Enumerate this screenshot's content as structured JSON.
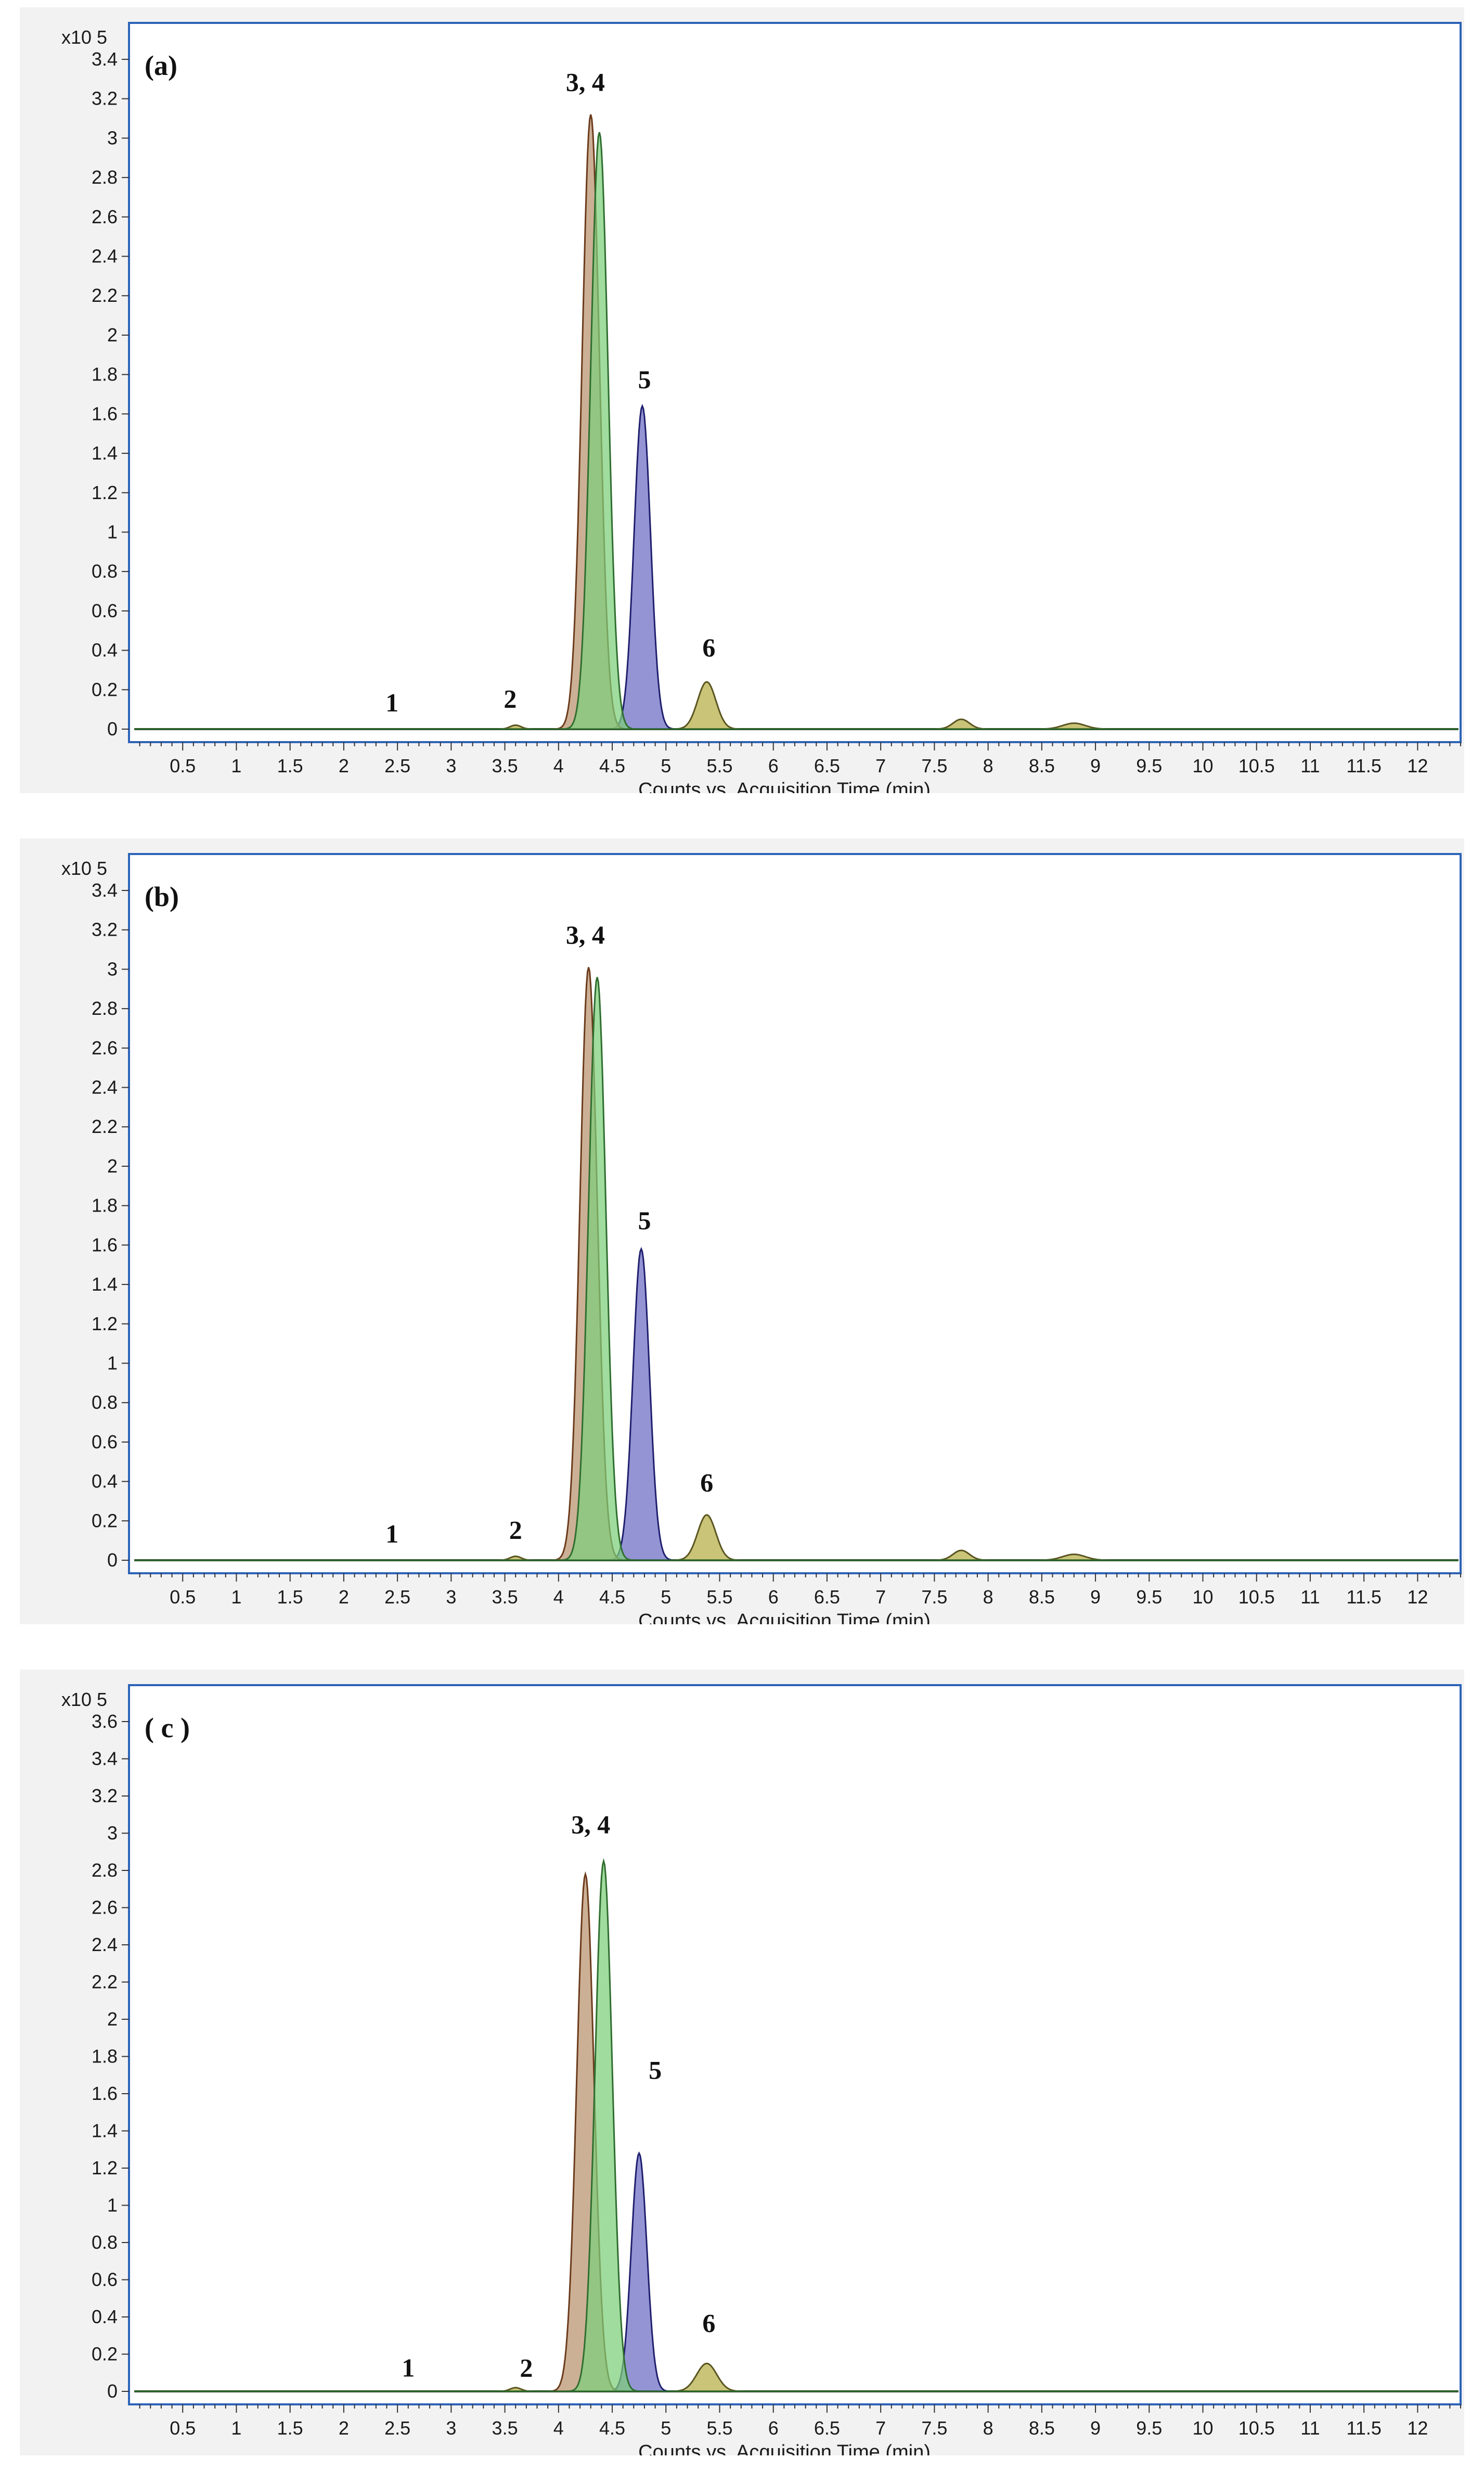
{
  "chart_data": [
    {
      "type": "area",
      "panel_label": "(a)",
      "xlabel": "Counts vs. Acquisition Time (min)",
      "y_exponent": "x10 5",
      "xlim": [
        0,
        12.4
      ],
      "ylim": [
        0,
        3.5
      ],
      "x_ticks": [
        "0.5",
        "1",
        "1.5",
        "2",
        "2.5",
        "3",
        "3.5",
        "4",
        "4.5",
        "5",
        "5.5",
        "6",
        "6.5",
        "7",
        "7.5",
        "8",
        "8.5",
        "9",
        "9.5",
        "10",
        "10.5",
        "11",
        "11.5",
        "12"
      ],
      "y_ticks": [
        "0",
        "0.2",
        "0.4",
        "0.6",
        "0.8",
        "1",
        "1.2",
        "1.4",
        "1.6",
        "1.8",
        "2",
        "2.2",
        "2.4",
        "2.6",
        "2.8",
        "3",
        "3.2",
        "3.4"
      ],
      "peak_labels": [
        {
          "text": "1",
          "x": 2.45,
          "y": 0.09
        },
        {
          "text": "2",
          "x": 3.55,
          "y": 0.11
        },
        {
          "text": "3, 4",
          "x": 4.25,
          "y": 3.24
        },
        {
          "text": "5",
          "x": 4.8,
          "y": 1.73
        },
        {
          "text": "6",
          "x": 5.4,
          "y": 0.37
        }
      ],
      "series": [
        {
          "color": "#6b6bc4",
          "line": "#1f1f6e",
          "peaks": [
            {
              "c": 4.78,
              "h": 1.64,
              "w": 0.18
            }
          ]
        },
        {
          "color": "#b5ad45",
          "line": "#5a5520",
          "peaks": [
            {
              "c": 5.38,
              "h": 0.24,
              "w": 0.2
            },
            {
              "c": 7.75,
              "h": 0.05,
              "w": 0.18
            },
            {
              "c": 8.8,
              "h": 0.03,
              "w": 0.25
            },
            {
              "c": 3.6,
              "h": 0.02,
              "w": 0.12
            }
          ]
        },
        {
          "color": "#b9926e",
          "line": "#6b3b1b",
          "peaks": [
            {
              "c": 4.3,
              "h": 3.12,
              "w": 0.19
            }
          ]
        },
        {
          "color": "#7dce7a",
          "line": "#2f6e2f",
          "peaks": [
            {
              "c": 4.38,
              "h": 3.03,
              "w": 0.19
            }
          ]
        }
      ]
    },
    {
      "type": "area",
      "panel_label": "(b)",
      "xlabel": "Counts vs. Acquisition Time (min)",
      "y_exponent": "x10 5",
      "xlim": [
        0,
        12.4
      ],
      "ylim": [
        0,
        3.5
      ],
      "x_ticks": [
        "0.5",
        "1",
        "1.5",
        "2",
        "2.5",
        "3",
        "3.5",
        "4",
        "4.5",
        "5",
        "5.5",
        "6",
        "6.5",
        "7",
        "7.5",
        "8",
        "8.5",
        "9",
        "9.5",
        "10",
        "10.5",
        "11",
        "11.5",
        "12"
      ],
      "y_ticks": [
        "0",
        "0.2",
        "0.4",
        "0.6",
        "0.8",
        "1",
        "1.2",
        "1.4",
        "1.6",
        "1.8",
        "2",
        "2.2",
        "2.4",
        "2.6",
        "2.8",
        "3",
        "3.2",
        "3.4"
      ],
      "peak_labels": [
        {
          "text": "1",
          "x": 2.45,
          "y": 0.09
        },
        {
          "text": "2",
          "x": 3.6,
          "y": 0.11
        },
        {
          "text": "3, 4",
          "x": 4.25,
          "y": 3.13
        },
        {
          "text": "5",
          "x": 4.8,
          "y": 1.68
        },
        {
          "text": "6",
          "x": 5.38,
          "y": 0.35
        }
      ],
      "series": [
        {
          "color": "#6b6bc4",
          "line": "#1f1f6e",
          "peaks": [
            {
              "c": 4.77,
              "h": 1.58,
              "w": 0.18
            }
          ]
        },
        {
          "color": "#b5ad45",
          "line": "#5a5520",
          "peaks": [
            {
              "c": 5.38,
              "h": 0.23,
              "w": 0.2
            },
            {
              "c": 7.75,
              "h": 0.05,
              "w": 0.18
            },
            {
              "c": 8.8,
              "h": 0.03,
              "w": 0.25
            },
            {
              "c": 3.6,
              "h": 0.02,
              "w": 0.12
            }
          ]
        },
        {
          "color": "#b9926e",
          "line": "#6b3b1b",
          "peaks": [
            {
              "c": 4.28,
              "h": 3.01,
              "w": 0.19
            }
          ]
        },
        {
          "color": "#7dce7a",
          "line": "#2f6e2f",
          "peaks": [
            {
              "c": 4.36,
              "h": 2.96,
              "w": 0.19
            }
          ]
        }
      ]
    },
    {
      "type": "area",
      "panel_label": "( c )",
      "xlabel": "Counts vs. Acquisition Time (min)",
      "y_exponent": "x10 5",
      "xlim": [
        0,
        12.4
      ],
      "ylim": [
        0,
        3.7
      ],
      "x_ticks": [
        "0.5",
        "1",
        "1.5",
        "2",
        "2.5",
        "3",
        "3.5",
        "4",
        "4.5",
        "5",
        "5.5",
        "6",
        "6.5",
        "7",
        "7.5",
        "8",
        "8.5",
        "9",
        "9.5",
        "10",
        "10.5",
        "11",
        "11.5",
        "12"
      ],
      "y_ticks": [
        "0",
        "0.2",
        "0.4",
        "0.6",
        "0.8",
        "1",
        "1.2",
        "1.4",
        "1.6",
        "1.8",
        "2",
        "2.2",
        "2.4",
        "2.6",
        "2.8",
        "3",
        "3.2",
        "3.4",
        "3.6"
      ],
      "peak_labels": [
        {
          "text": "1",
          "x": 2.6,
          "y": 0.08
        },
        {
          "text": "2",
          "x": 3.7,
          "y": 0.08
        },
        {
          "text": "3, 4",
          "x": 4.3,
          "y": 3.0
        },
        {
          "text": "5",
          "x": 4.9,
          "y": 1.68
        },
        {
          "text": "6",
          "x": 5.4,
          "y": 0.32
        }
      ],
      "series": [
        {
          "color": "#6b6bc4",
          "line": "#1f1f6e",
          "peaks": [
            {
              "c": 4.75,
              "h": 1.28,
              "w": 0.17
            }
          ]
        },
        {
          "color": "#b5ad45",
          "line": "#5a5520",
          "peaks": [
            {
              "c": 5.38,
              "h": 0.15,
              "w": 0.22
            },
            {
              "c": 3.6,
              "h": 0.02,
              "w": 0.12
            }
          ]
        },
        {
          "color": "#b9926e",
          "line": "#6b3b1b",
          "peaks": [
            {
              "c": 4.25,
              "h": 2.78,
              "w": 0.19
            }
          ]
        },
        {
          "color": "#7dce7a",
          "line": "#2f6e2f",
          "peaks": [
            {
              "c": 4.42,
              "h": 2.85,
              "w": 0.19
            }
          ]
        }
      ]
    }
  ]
}
